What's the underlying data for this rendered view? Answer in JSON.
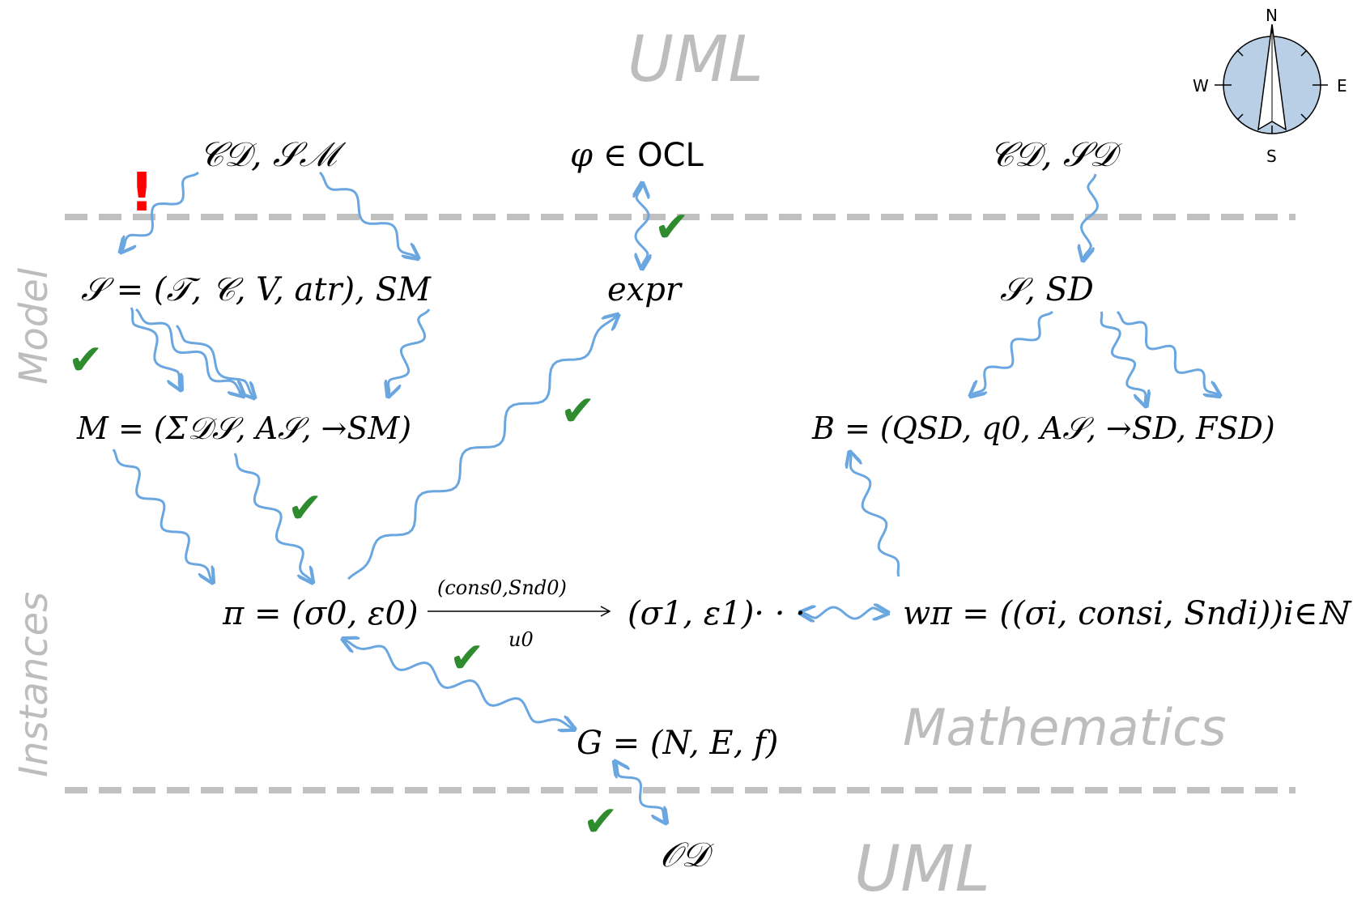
{
  "regions": {
    "top": "UML",
    "bottom": "UML",
    "mathematics": "Mathematics",
    "model": "Model",
    "instances": "Instances"
  },
  "nodes": {
    "cd_sm": "𝒞𝒟, 𝒮ℳ",
    "phi_ocl_phi": "φ ∈",
    "phi_ocl_ocl": "OCL",
    "cd_sd": "𝒞𝒟, 𝒮𝒟",
    "signature": "𝒮 = (𝒯, 𝒞, V, atr), SM",
    "expr": "expr",
    "sig_sd": "𝒮, SD",
    "machine": "M = (Σ𝒟𝒮, A𝒮, →SM)",
    "buchi": "B = (QSD, q0, A𝒮, →SD, FSD)",
    "run": "π = (σ0, ε0)",
    "run_tail": "(σ1, ε1)· · ·",
    "word": "wπ = ((σi, consi, Sndi))i∈ℕ",
    "graph": "G = (N, E, f)",
    "od": "𝒪𝒟"
  },
  "transition": {
    "top_label": "(cons0,Snd0)",
    "bottom_label": "u0"
  },
  "compass": {
    "north": "N",
    "south": "S",
    "east": "E",
    "west": "W",
    "fill_color": "#b8cfe6"
  },
  "colors": {
    "arrow": "#6aa6e0",
    "check": "#2e8b2e",
    "warning": "#ff0000",
    "dashed_line": "#c0c0c0",
    "region_text": "#bdbdbd"
  },
  "markers": {
    "warning": "!",
    "check": "✔"
  }
}
